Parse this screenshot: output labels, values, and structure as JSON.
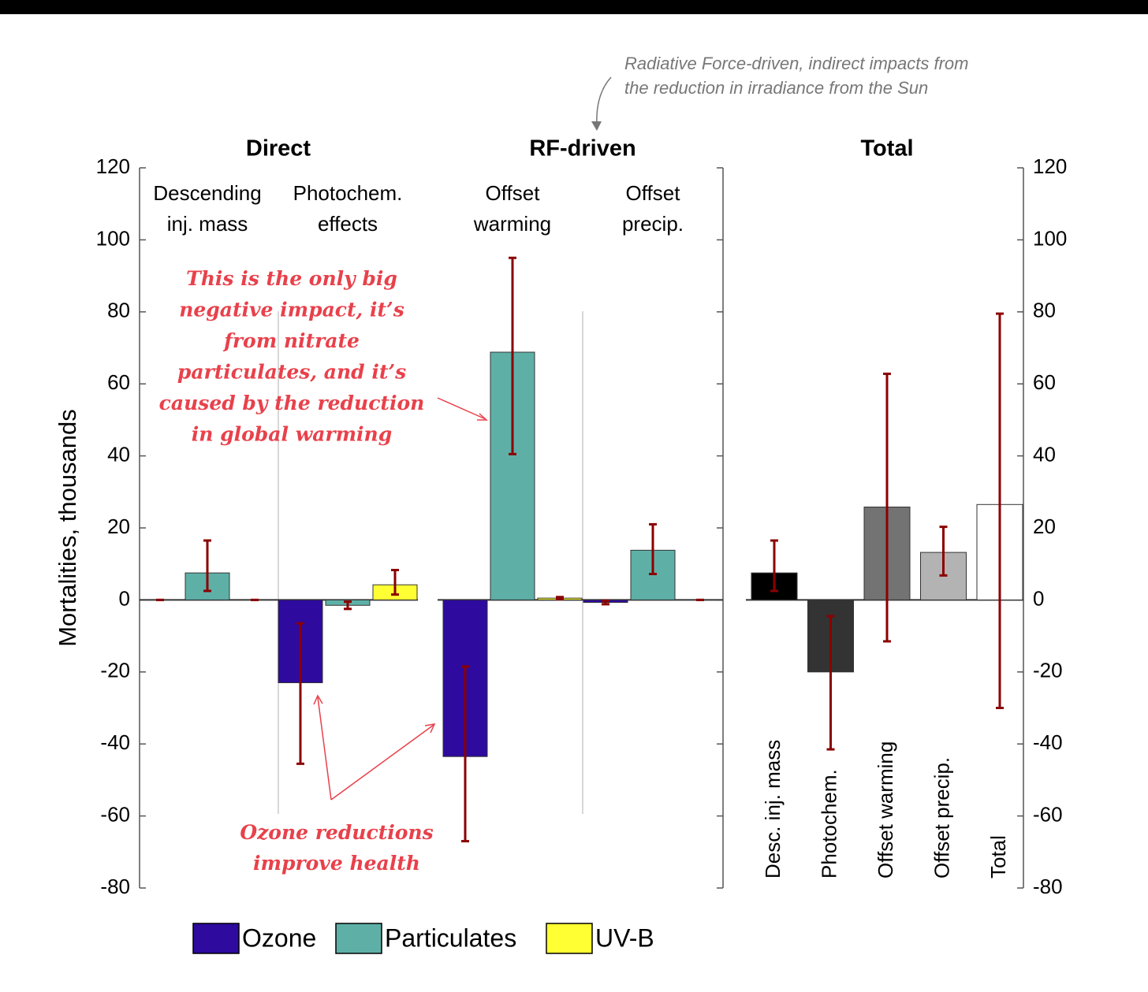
{
  "chart_data": [
    {
      "type": "bar",
      "group_titles": [
        "Direct",
        "RF-driven"
      ],
      "ylabel": "Mortalities, thousands",
      "categories": [
        "Descending\ninj. mass",
        "Photochem.\neffects",
        "Offset\nwarming",
        "Offset\nprecip."
      ],
      "series": [
        {
          "name": "Ozone",
          "color": "#2e0a9e",
          "values": [
            0,
            -23,
            -43.5,
            -0.7
          ],
          "lower": [
            0,
            -45.5,
            -67,
            -1.2
          ],
          "upper": [
            0,
            -6.5,
            -18.5,
            -0.2
          ]
        },
        {
          "name": "Particulates",
          "color": "#5eb0a7",
          "values": [
            7.5,
            -1.5,
            68.8,
            13.8
          ],
          "lower": [
            2.5,
            -2.5,
            40.5,
            7.2
          ],
          "upper": [
            16.5,
            -0.5,
            95,
            21
          ]
        },
        {
          "name": "UV-B",
          "color": "#ffff33",
          "values": [
            0,
            4.2,
            0.5,
            0
          ],
          "lower": [
            0,
            1.5,
            0.2,
            0
          ],
          "upper": [
            0,
            8.3,
            0.8,
            0
          ]
        }
      ],
      "error_color": "#8b0000",
      "ylim": [
        -80,
        120
      ],
      "yticks": [
        -80,
        -60,
        -40,
        -20,
        0,
        20,
        40,
        60,
        80,
        100,
        120
      ],
      "annotations": [
        "Radiative Force-driven, indirect impacts from\nthe reduction in irradiance from the Sun",
        "This is the only big\nnegative impact, it’s\nfrom nitrate\nparticulates, and it’s\ncaused by the reduction\nin global warming",
        "Ozone reductions\nimprove health"
      ]
    },
    {
      "type": "bar",
      "title": "Total",
      "categories": [
        "Desc. inj. mass",
        "Photochem.",
        "Offset warming",
        "Offset precip.",
        "Total"
      ],
      "values": [
        7.5,
        -20,
        25.8,
        13.2,
        26.5
      ],
      "lower": [
        2.5,
        -41.5,
        -11.5,
        6.8,
        -30
      ],
      "upper": [
        16.5,
        -4.5,
        62.8,
        20.3,
        79.5
      ],
      "colors": [
        "#000000",
        "#333333",
        "#737373",
        "#b3b3b3",
        "#ffffff"
      ],
      "error_color": "#8b0000",
      "ylim": [
        -80,
        120
      ],
      "yticks": [
        -80,
        -60,
        -40,
        -20,
        0,
        20,
        40,
        60,
        80,
        100,
        120
      ]
    }
  ]
}
